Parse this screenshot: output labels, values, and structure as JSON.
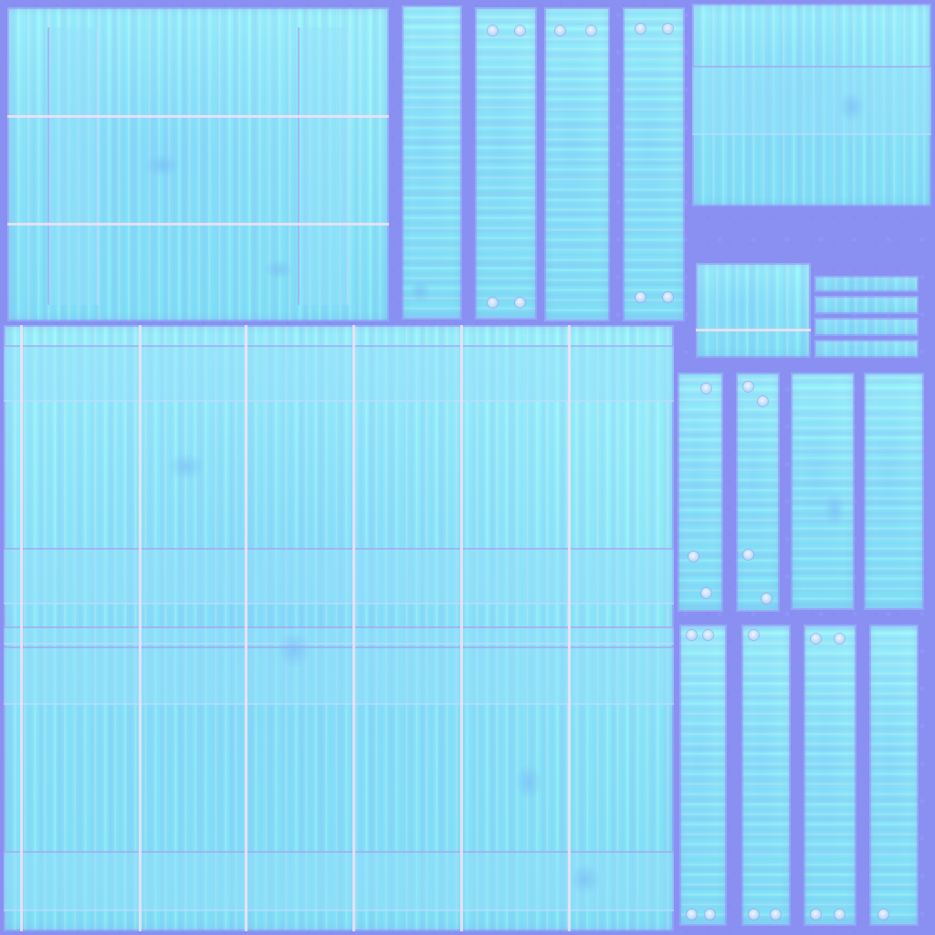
{
  "texture": {
    "background_color": "#8a90f2",
    "wood_color": "#8ff0f6",
    "seam_color": "#f5e1f5",
    "nail_color": "#eef6ff"
  }
}
